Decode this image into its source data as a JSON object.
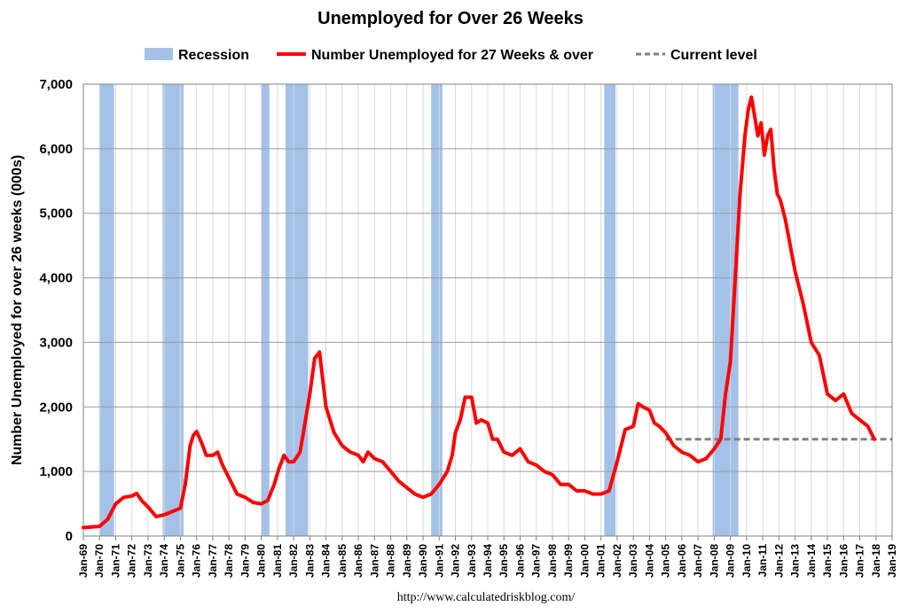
{
  "chart_data": {
    "type": "line",
    "title": "Unemployed for Over 26 Weeks",
    "ylabel": "Number Unemployed for over 26 weeks (000s)",
    "source": "http://www.calculatedriskblog.com/",
    "ylim": [
      0,
      7000
    ],
    "yticks": [
      "0",
      "1,000",
      "2,000",
      "3,000",
      "4,000",
      "5,000",
      "6,000",
      "7,000"
    ],
    "ytick_values": [
      0,
      1000,
      2000,
      3000,
      4000,
      5000,
      6000,
      7000
    ],
    "xlim": [
      1969,
      2019
    ],
    "xtick_labels": [
      "Jan-69",
      "Jan-70",
      "Jan-71",
      "Jan-72",
      "Jan-73",
      "Jan-74",
      "Jan-75",
      "Jan-76",
      "Jan-77",
      "Jan-78",
      "Jan-79",
      "Jan-80",
      "Jan-81",
      "Jan-82",
      "Jan-83",
      "Jan-84",
      "Jan-85",
      "Jan-86",
      "Jan-87",
      "Jan-88",
      "Jan-89",
      "Jan-90",
      "Jan-91",
      "Jan-92",
      "Jan-93",
      "Jan-94",
      "Jan-95",
      "Jan-96",
      "Jan-97",
      "Jan-98",
      "Jan-99",
      "Jan-00",
      "Jan-01",
      "Jan-02",
      "Jan-03",
      "Jan-04",
      "Jan-05",
      "Jan-06",
      "Jan-07",
      "Jan-08",
      "Jan-09",
      "Jan-10",
      "Jan-11",
      "Jan-12",
      "Jan-13",
      "Jan-14",
      "Jan-15",
      "Jan-16",
      "Jan-17",
      "Jan-18",
      "Jan-19"
    ],
    "grid": true,
    "legend_position": "top",
    "legend": [
      {
        "label": "Recession",
        "kind": "bar",
        "color": "#a4c2e8"
      },
      {
        "label": "Number Unemployed for 27 Weeks & over",
        "kind": "line",
        "color": "#ff0000"
      },
      {
        "label": "Current level",
        "kind": "dashed",
        "color": "#808080"
      }
    ],
    "recessions": [
      {
        "start": 1970.0,
        "end": 1970.9
      },
      {
        "start": 1973.9,
        "end": 1975.2
      },
      {
        "start": 1980.0,
        "end": 1980.5
      },
      {
        "start": 1981.5,
        "end": 1982.9
      },
      {
        "start": 1990.5,
        "end": 1991.2
      },
      {
        "start": 2001.2,
        "end": 2001.9
      },
      {
        "start": 2007.9,
        "end": 2009.5
      }
    ],
    "current_level": {
      "value": 1500,
      "x_start": 2005.0,
      "x_end": 2019.0
    },
    "series": [
      {
        "name": "Number Unemployed for 27 Weeks & over",
        "color": "#ff0000",
        "x": [
          1969.0,
          1969.5,
          1970.0,
          1970.5,
          1971.0,
          1971.5,
          1972.0,
          1972.3,
          1972.6,
          1973.0,
          1973.5,
          1974.0,
          1974.5,
          1975.0,
          1975.3,
          1975.6,
          1975.8,
          1976.0,
          1976.3,
          1976.6,
          1977.0,
          1977.3,
          1977.6,
          1978.0,
          1978.5,
          1979.0,
          1979.5,
          1980.0,
          1980.4,
          1980.8,
          1981.1,
          1981.4,
          1981.7,
          1982.0,
          1982.4,
          1982.8,
          1983.0,
          1983.3,
          1983.6,
          1984.0,
          1984.5,
          1985.0,
          1985.5,
          1986.0,
          1986.3,
          1986.6,
          1987.0,
          1987.5,
          1988.0,
          1988.5,
          1989.0,
          1989.5,
          1990.0,
          1990.5,
          1991.0,
          1991.5,
          1991.8,
          1992.0,
          1992.3,
          1992.6,
          1993.0,
          1993.3,
          1993.6,
          1994.0,
          1994.3,
          1994.6,
          1995.0,
          1995.5,
          1996.0,
          1996.5,
          1997.0,
          1997.5,
          1998.0,
          1998.5,
          1999.0,
          1999.5,
          2000.0,
          2000.5,
          2001.0,
          2001.5,
          2002.0,
          2002.5,
          2003.0,
          2003.3,
          2003.6,
          2004.0,
          2004.3,
          2004.6,
          2005.0,
          2005.5,
          2006.0,
          2006.5,
          2007.0,
          2007.5,
          2008.0,
          2008.4,
          2008.7,
          2009.0,
          2009.3,
          2009.6,
          2009.9,
          2010.1,
          2010.3,
          2010.5,
          2010.7,
          2010.9,
          2011.1,
          2011.3,
          2011.5,
          2011.7,
          2011.9,
          2012.1,
          2012.4,
          2012.7,
          2013.0,
          2013.5,
          2014.0,
          2014.5,
          2015.0,
          2015.5,
          2016.0,
          2016.5,
          2017.0,
          2017.5,
          2017.9
        ],
        "values": [
          130,
          140,
          150,
          260,
          500,
          600,
          620,
          660,
          550,
          450,
          300,
          330,
          380,
          430,
          800,
          1400,
          1560,
          1620,
          1450,
          1250,
          1250,
          1300,
          1100,
          900,
          650,
          600,
          520,
          500,
          550,
          800,
          1050,
          1250,
          1150,
          1150,
          1300,
          1900,
          2200,
          2750,
          2850,
          2000,
          1600,
          1400,
          1300,
          1250,
          1150,
          1300,
          1200,
          1150,
          1000,
          850,
          750,
          650,
          600,
          650,
          800,
          1000,
          1250,
          1600,
          1800,
          2150,
          2150,
          1750,
          1800,
          1750,
          1500,
          1500,
          1300,
          1250,
          1350,
          1150,
          1100,
          1000,
          950,
          800,
          800,
          700,
          700,
          650,
          650,
          700,
          1150,
          1650,
          1700,
          2050,
          2000,
          1950,
          1750,
          1700,
          1600,
          1400,
          1300,
          1250,
          1150,
          1200,
          1350,
          1500,
          2200,
          2700,
          4000,
          5300,
          6200,
          6600,
          6800,
          6500,
          6200,
          6400,
          5900,
          6200,
          6300,
          5700,
          5300,
          5200,
          4900,
          4500,
          4100,
          3600,
          3000,
          2800,
          2200,
          2100,
          2200,
          1900,
          1800,
          1700,
          1500
        ]
      }
    ]
  }
}
